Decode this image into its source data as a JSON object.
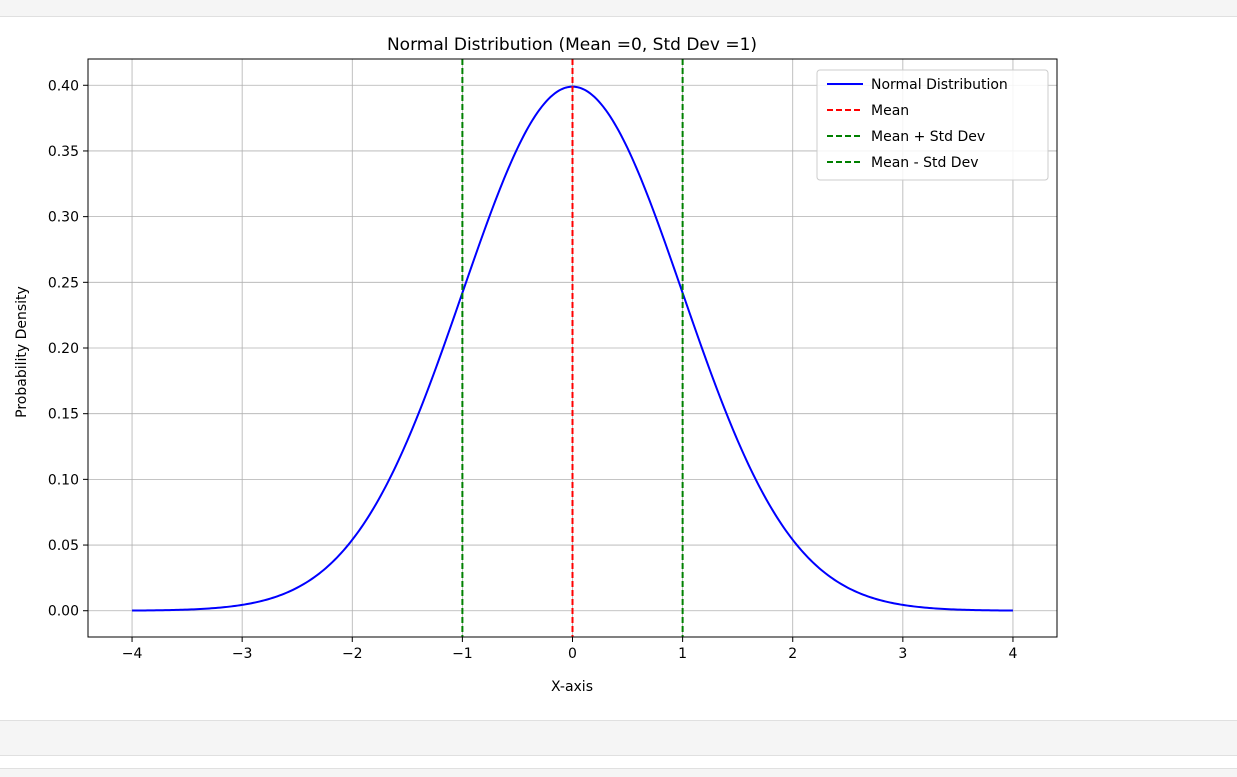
{
  "notebook": {
    "cells": [
      "output-top",
      "empty-cell",
      "next-cell"
    ]
  },
  "chart_data": {
    "type": "line",
    "title": "Normal Distribution (Mean =0, Std Dev =1)",
    "xlabel": "X-axis",
    "ylabel": "Probability Density",
    "xlim": [
      -4.4,
      4.4
    ],
    "ylim": [
      -0.02,
      0.42
    ],
    "xticks": [
      -4,
      -3,
      -2,
      -1,
      0,
      1,
      2,
      3,
      4
    ],
    "xtick_labels": [
      "−4",
      "−3",
      "−2",
      "−1",
      "0",
      "1",
      "2",
      "3",
      "4"
    ],
    "yticks": [
      0.0,
      0.05,
      0.1,
      0.15,
      0.2,
      0.25,
      0.3,
      0.35,
      0.4
    ],
    "ytick_labels": [
      "0.00",
      "0.05",
      "0.10",
      "0.15",
      "0.20",
      "0.25",
      "0.30",
      "0.35",
      "0.40"
    ],
    "grid": true,
    "legend_position": "top-right",
    "series": [
      {
        "name": "Normal Distribution",
        "style": "solid",
        "color": "#0000ff",
        "x": [
          -4.0,
          -3.75,
          -3.5,
          -3.25,
          -3.0,
          -2.75,
          -2.5,
          -2.25,
          -2.0,
          -1.75,
          -1.5,
          -1.25,
          -1.0,
          -0.75,
          -0.5,
          -0.25,
          0.0,
          0.25,
          0.5,
          0.75,
          1.0,
          1.25,
          1.5,
          1.75,
          2.0,
          2.25,
          2.5,
          2.75,
          3.0,
          3.25,
          3.5,
          3.75,
          4.0
        ],
        "y": [
          0.0001,
          0.0004,
          0.0009,
          0.002,
          0.0044,
          0.0091,
          0.0175,
          0.0317,
          0.054,
          0.0863,
          0.1295,
          0.1826,
          0.242,
          0.3011,
          0.3521,
          0.3867,
          0.3989,
          0.3867,
          0.3521,
          0.3011,
          0.242,
          0.1826,
          0.1295,
          0.0863,
          0.054,
          0.0317,
          0.0175,
          0.0091,
          0.0044,
          0.002,
          0.0009,
          0.0004,
          0.0001
        ]
      },
      {
        "name": "Mean",
        "style": "dashed",
        "color": "#ff0000",
        "x_value": 0
      },
      {
        "name": "Mean + Std Dev",
        "style": "dashed",
        "color": "#008000",
        "x_value": 1
      },
      {
        "name": "Mean - Std Dev",
        "style": "dashed",
        "color": "#008000",
        "x_value": -1
      }
    ]
  }
}
